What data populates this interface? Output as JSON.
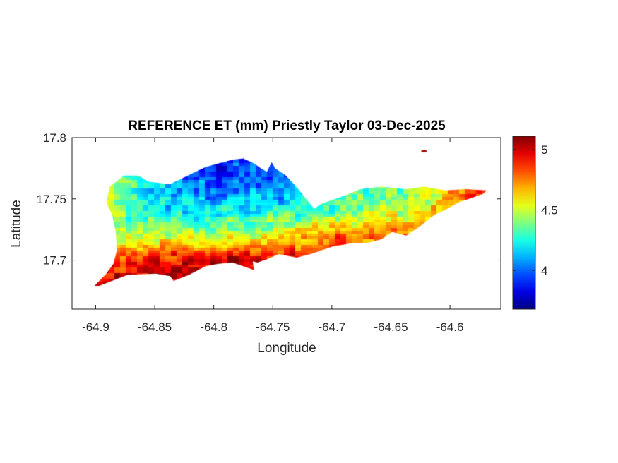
{
  "chart_data": {
    "type": "heatmap",
    "title": "REFERENCE ET (mm) Priestly Taylor 03-Dec-2025",
    "xlabel": "Longitude",
    "ylabel": "Latitude",
    "xlim": [
      -64.92,
      -64.557
    ],
    "ylim": [
      17.66,
      17.8
    ],
    "xticks": [
      -64.9,
      -64.85,
      -64.8,
      -64.75,
      -64.7,
      -64.65,
      -64.6
    ],
    "xtick_labels": [
      "-64.9",
      "-64.85",
      "-64.8",
      "-64.75",
      "-64.7",
      "-64.65",
      "-64.6"
    ],
    "yticks": [
      17.7,
      17.75,
      17.8
    ],
    "ytick_labels": [
      "17.7",
      "17.75",
      "17.8"
    ],
    "colorbar": {
      "colormap": "jet",
      "clim": [
        3.68,
        5.11
      ],
      "ticks": [
        4,
        4.5,
        5
      ],
      "tick_labels": [
        "4",
        "4.5",
        "5"
      ],
      "location": "right"
    },
    "grid": false,
    "field": {
      "lons": [
        -64.9,
        -64.85,
        -64.8,
        -64.75,
        -64.7,
        -64.65,
        -64.6,
        -64.57
      ],
      "lats": [
        17.68,
        17.7,
        17.72,
        17.74,
        17.76,
        17.78
      ],
      "values": [
        [
          5.0,
          5.05,
          5.05,
          5.0,
          5.0,
          5.0,
          5.0,
          5.0
        ],
        [
          4.8,
          4.95,
          5.0,
          5.0,
          4.9,
          4.85,
          4.8,
          4.8
        ],
        [
          4.5,
          4.5,
          4.45,
          4.6,
          4.75,
          4.8,
          4.8,
          4.85
        ],
        [
          4.45,
          4.25,
          4.2,
          4.25,
          4.35,
          4.5,
          4.65,
          4.9
        ],
        [
          4.5,
          4.15,
          4.0,
          4.05,
          4.3,
          4.35,
          4.7,
          4.95
        ],
        [
          4.5,
          4.2,
          3.85,
          4.0,
          4.3,
          4.3,
          4.7,
          5.0
        ]
      ]
    },
    "outline": [
      [
        -64.901,
        17.679
      ],
      [
        -64.891,
        17.689
      ],
      [
        -64.885,
        17.697
      ],
      [
        -64.882,
        17.708
      ],
      [
        -64.883,
        17.723
      ],
      [
        -64.886,
        17.737
      ],
      [
        -64.891,
        17.747
      ],
      [
        -64.888,
        17.76
      ],
      [
        -64.876,
        17.769
      ],
      [
        -64.864,
        17.769
      ],
      [
        -64.855,
        17.764
      ],
      [
        -64.837,
        17.762
      ],
      [
        -64.822,
        17.769
      ],
      [
        -64.807,
        17.776
      ],
      [
        -64.796,
        17.779
      ],
      [
        -64.784,
        17.782
      ],
      [
        -64.775,
        17.783
      ],
      [
        -64.766,
        17.779
      ],
      [
        -64.76,
        17.775
      ],
      [
        -64.755,
        17.772
      ],
      [
        -64.751,
        17.78
      ],
      [
        -64.748,
        17.775
      ],
      [
        -64.739,
        17.769
      ],
      [
        -64.73,
        17.76
      ],
      [
        -64.721,
        17.749
      ],
      [
        -64.715,
        17.742
      ],
      [
        -64.709,
        17.746
      ],
      [
        -64.7,
        17.749
      ],
      [
        -64.688,
        17.753
      ],
      [
        -64.676,
        17.758
      ],
      [
        -64.658,
        17.76
      ],
      [
        -64.637,
        17.758
      ],
      [
        -64.622,
        17.76
      ],
      [
        -64.604,
        17.757
      ],
      [
        -64.587,
        17.758
      ],
      [
        -64.569,
        17.757
      ],
      [
        -64.572,
        17.754
      ],
      [
        -64.593,
        17.747
      ],
      [
        -64.604,
        17.741
      ],
      [
        -64.613,
        17.737
      ],
      [
        -64.625,
        17.728
      ],
      [
        -64.637,
        17.72
      ],
      [
        -64.649,
        17.723
      ],
      [
        -64.658,
        17.717
      ],
      [
        -64.67,
        17.714
      ],
      [
        -64.682,
        17.714
      ],
      [
        -64.7,
        17.711
      ],
      [
        -64.718,
        17.705
      ],
      [
        -64.73,
        17.702
      ],
      [
        -64.745,
        17.705
      ],
      [
        -64.754,
        17.701
      ],
      [
        -64.763,
        17.698
      ],
      [
        -64.767,
        17.699
      ],
      [
        -64.766,
        17.692
      ],
      [
        -64.775,
        17.695
      ],
      [
        -64.784,
        17.698
      ],
      [
        -64.796,
        17.697
      ],
      [
        -64.807,
        17.695
      ],
      [
        -64.821,
        17.688
      ],
      [
        -64.834,
        17.683
      ],
      [
        -64.837,
        17.687
      ],
      [
        -64.849,
        17.689
      ],
      [
        -64.873,
        17.688
      ],
      [
        -64.897,
        17.679
      ]
    ],
    "islet": [
      -64.622,
      17.789
    ]
  }
}
